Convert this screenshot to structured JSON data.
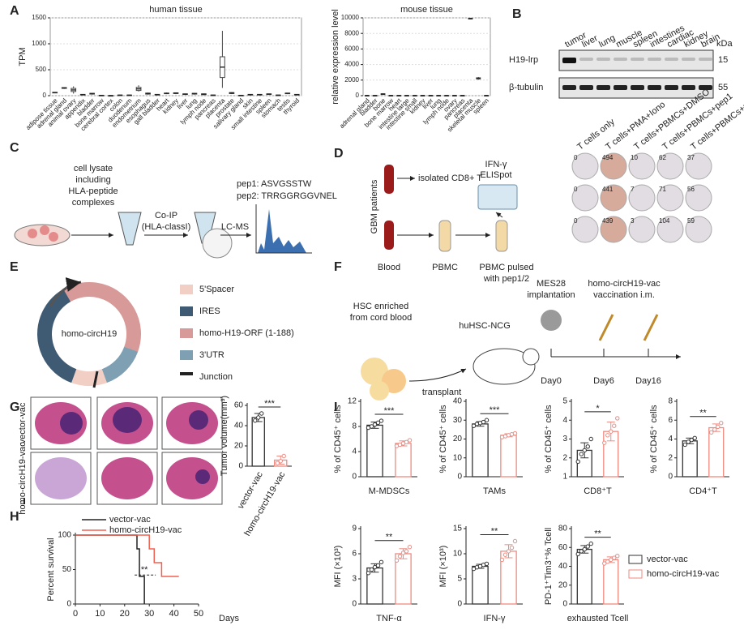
{
  "panel_labels": [
    "A",
    "B",
    "C",
    "D",
    "E",
    "F",
    "G",
    "H",
    "I"
  ],
  "blot": {
    "lanes": [
      "tumor",
      "liver",
      "lung",
      "muscle",
      "spleen",
      "intestines",
      "cardiac",
      "kidney",
      "brain"
    ],
    "unit": "kDa",
    "rows": [
      {
        "name": "H19-lrp",
        "marker": "15"
      },
      {
        "name": "β-tubulin",
        "marker": "55"
      }
    ]
  },
  "workflow_c": {
    "lysate": [
      "cell lysate",
      "including",
      "HLA-peptide",
      "complexes"
    ],
    "coip": [
      "Co-IP",
      "(HLA-classI)"
    ],
    "lcms": "LC-MS",
    "peptides": [
      "pep1: ASVGSSTW",
      "pep2: TRRGGRGGVNEL"
    ]
  },
  "workflow_d": {
    "patients": "GBM patients",
    "cd8": "isolated CD8+ T",
    "elispot": [
      "IFN-γ",
      "ELISpot"
    ],
    "blood": "Blood",
    "pbmc": "PBMC",
    "pulsed": [
      "PBMC pulsed",
      "with pep1/2"
    ],
    "conditions": [
      "T cells only",
      "T cells+PMA+Iono",
      "T cells+PBMCs+DMSO",
      "T cells+PBMCs+pep1",
      "T cells+PBMCs+pep2"
    ],
    "spots": [
      [
        0,
        494,
        10,
        62,
        37
      ],
      [
        0,
        441,
        7,
        71,
        56
      ],
      [
        0,
        439,
        3,
        104,
        59
      ]
    ]
  },
  "construct_e": {
    "name": "homo-circH19",
    "legend": [
      {
        "label": "5'Spacer",
        "color": "#f2cfc5"
      },
      {
        "label": "IRES",
        "color": "#3f5a73"
      },
      {
        "label": "homo-H19-ORF (1-188)",
        "color": "#d89a98"
      },
      {
        "label": "3'UTR",
        "color": "#7f9fb3"
      },
      {
        "label": "Junction",
        "color": "#222222"
      }
    ]
  },
  "model_f": {
    "source": [
      "HSC enriched",
      "from cord blood"
    ],
    "transplant": "transplant",
    "mouse": "huHSC-NCG",
    "implant": [
      "MES28",
      "implantation"
    ],
    "vaccine": [
      "homo-circH19-vac",
      "vaccination i.m."
    ],
    "days": [
      "Day0",
      "Day6",
      "Day16"
    ]
  },
  "panel_g": {
    "rows": [
      "vector-vac",
      "homo-circH19-vac"
    ]
  },
  "panel_i_legend": [
    {
      "name": "vector-vac",
      "color": "#333333"
    },
    {
      "name": "homo-circH19-vac",
      "color": "#f08a80"
    }
  ],
  "chart_data": [
    {
      "type": "box",
      "title": "human tissue",
      "ylabel": "TPM",
      "frame": true,
      "grid": true,
      "ylim": [
        0,
        1500
      ],
      "yticks": [
        0,
        500,
        1000,
        1500
      ],
      "categories": [
        "adipose tissue",
        "adrenal gland",
        "animal ovary",
        "appendix",
        "bladder",
        "bone marrow",
        "cerebral cortex",
        "colon",
        "duodenum",
        "endometrium",
        "esophagus",
        "gall bladder",
        "heart",
        "kidney",
        "liver",
        "lung",
        "lymph node",
        "pancreas",
        "placenta",
        "prostate",
        "salivary gland",
        "skin",
        "small intestine",
        "spleen",
        "stomach",
        "testis",
        "thyroid"
      ],
      "boxes": [
        [
          50,
          55,
          60,
          65,
          70
        ],
        [
          130,
          140,
          150,
          155,
          160
        ],
        [
          40,
          80,
          110,
          140,
          180
        ],
        [
          10,
          15,
          20,
          25,
          30
        ],
        [
          20,
          30,
          40,
          45,
          50
        ],
        [
          0,
          2,
          5,
          8,
          10
        ],
        [
          0,
          1,
          2,
          3,
          5
        ],
        [
          5,
          8,
          10,
          12,
          15
        ],
        [
          5,
          8,
          10,
          12,
          15
        ],
        [
          80,
          100,
          130,
          160,
          200
        ],
        [
          20,
          30,
          40,
          50,
          60
        ],
        [
          10,
          15,
          20,
          25,
          30
        ],
        [
          30,
          40,
          45,
          50,
          60
        ],
        [
          30,
          40,
          50,
          55,
          60
        ],
        [
          20,
          25,
          30,
          35,
          40
        ],
        [
          20,
          30,
          40,
          45,
          50
        ],
        [
          10,
          20,
          30,
          35,
          40
        ],
        [
          5,
          8,
          10,
          12,
          15
        ],
        [
          150,
          350,
          550,
          750,
          1250
        ],
        [
          30,
          40,
          50,
          60,
          70
        ],
        [
          0,
          2,
          5,
          8,
          10
        ],
        [
          10,
          15,
          20,
          25,
          30
        ],
        [
          10,
          15,
          20,
          25,
          30
        ],
        [
          20,
          25,
          30,
          35,
          40
        ],
        [
          5,
          8,
          10,
          12,
          15
        ],
        [
          30,
          40,
          45,
          50,
          55
        ],
        [
          10,
          15,
          20,
          25,
          30
        ]
      ]
    },
    {
      "type": "box",
      "title": "mouse tissue",
      "ylabel": "relative expression level",
      "frame": true,
      "grid": true,
      "ylim": [
        0,
        10000
      ],
      "yticks": [
        0,
        2000,
        4000,
        6000,
        8000,
        10000
      ],
      "categories": [
        "adrenal gland",
        "bladder",
        "bone",
        "bone marrow",
        "heart",
        "intestine large",
        "intestine small",
        "kidney",
        "liver",
        "lung",
        "lymph node",
        "ovary",
        "pancreas",
        "placenta",
        "skeletal muscle",
        "spleen"
      ],
      "boxes": [
        [
          0,
          10,
          20,
          30,
          40
        ],
        [
          0,
          10,
          20,
          30,
          40
        ],
        [
          100,
          150,
          200,
          250,
          300
        ],
        [
          0,
          10,
          20,
          30,
          40
        ],
        [
          0,
          10,
          20,
          30,
          40
        ],
        [
          0,
          10,
          20,
          30,
          40
        ],
        [
          0,
          10,
          20,
          30,
          40
        ],
        [
          0,
          10,
          20,
          30,
          40
        ],
        [
          0,
          10,
          20,
          30,
          40
        ],
        [
          0,
          10,
          20,
          30,
          40
        ],
        [
          0,
          10,
          20,
          30,
          40
        ],
        [
          0,
          10,
          20,
          30,
          40
        ],
        [
          0,
          10,
          20,
          30,
          40
        ],
        [
          9800,
          9850,
          9900,
          9950,
          10000
        ],
        [
          2050,
          2150,
          2200,
          2300,
          2400
        ],
        [
          0,
          10,
          20,
          30,
          40
        ]
      ]
    },
    {
      "type": "bar",
      "ylabel": "Tumor volume(mm³)",
      "categories": [
        "vector-vac",
        "homo-circH19-vac"
      ],
      "ylim": [
        0,
        60
      ],
      "yticks": [
        0,
        20,
        40,
        60
      ],
      "values": [
        48,
        6
      ],
      "errors": [
        4,
        4
      ],
      "points": [
        [
          45,
          48,
          52
        ],
        [
          3,
          5,
          10
        ]
      ],
      "colors": [
        "#333333",
        "#f08a80"
      ],
      "significance": "***"
    },
    {
      "type": "line",
      "ylabel": "Percent survival",
      "xlabel": "Days",
      "xlim": [
        0,
        50
      ],
      "xticks": [
        0,
        10,
        20,
        30,
        40,
        50
      ],
      "ylim": [
        0,
        100
      ],
      "yticks": [
        0,
        50,
        100
      ],
      "annotation": "**",
      "series": [
        {
          "name": "vector-vac",
          "color": "#222222",
          "x": [
            0,
            25,
            25,
            26,
            26,
            28,
            28
          ],
          "y": [
            100,
            100,
            80,
            80,
            40,
            40,
            0
          ]
        },
        {
          "name": "homo-circH19-vac",
          "color": "#f06050",
          "x": [
            0,
            30,
            30,
            32,
            32,
            35,
            35,
            42
          ],
          "y": [
            100,
            100,
            80,
            80,
            60,
            60,
            40,
            40
          ]
        }
      ]
    },
    {
      "type": "bar",
      "ylabel": "% of CD45⁺ cells",
      "xlabel": "M-MDSCs",
      "ylim": [
        0,
        12
      ],
      "yticks": [
        0,
        4,
        8,
        12
      ],
      "values": [
        8.2,
        5.3
      ],
      "errors": [
        0.5,
        0.4
      ],
      "points": [
        [
          7.8,
          8.0,
          8.3,
          8.6,
          8.9
        ],
        [
          4.9,
          5.1,
          5.3,
          5.5,
          5.8
        ]
      ],
      "colors": [
        "#333333",
        "#f08a80"
      ],
      "significance": "***"
    },
    {
      "type": "bar",
      "ylabel": "% of CD45⁺ cells",
      "xlabel": "TAMs",
      "ylim": [
        0,
        40
      ],
      "yticks": [
        0,
        10,
        20,
        30,
        40
      ],
      "values": [
        28,
        22
      ],
      "errors": [
        1.2,
        0.8
      ],
      "points": [
        [
          27,
          28,
          28.5,
          29,
          30
        ],
        [
          21,
          21.5,
          22,
          22.5,
          23
        ]
      ],
      "colors": [
        "#333333",
        "#f08a80"
      ],
      "significance": "***"
    },
    {
      "type": "bar",
      "ylabel": "% of CD45⁺ cells",
      "xlabel": "CD8⁺T",
      "ylim": [
        1,
        5
      ],
      "yticks": [
        1,
        2,
        3,
        4,
        5
      ],
      "values": [
        2.4,
        3.4
      ],
      "errors": [
        0.4,
        0.5
      ],
      "points": [
        [
          1.8,
          2.2,
          2.4,
          2.6,
          3.0
        ],
        [
          2.8,
          3.2,
          3.4,
          3.7,
          4.1
        ]
      ],
      "colors": [
        "#333333",
        "#f08a80"
      ],
      "significance": "*"
    },
    {
      "type": "bar",
      "ylabel": "% of CD45⁺ cells",
      "xlabel": "CD4⁺T",
      "ylim": [
        0,
        8
      ],
      "yticks": [
        0,
        2,
        4,
        6,
        8
      ],
      "values": [
        3.8,
        5.2
      ],
      "errors": [
        0.3,
        0.4
      ],
      "points": [
        [
          3.4,
          3.7,
          3.9,
          4.1
        ],
        [
          4.7,
          5.0,
          5.3,
          5.7
        ]
      ],
      "colors": [
        "#333333",
        "#f08a80"
      ],
      "significance": "**"
    },
    {
      "type": "bar",
      "ylabel": "MFI (×10³)",
      "xlabel": "TNF-α",
      "ylim": [
        0,
        9
      ],
      "yticks": [
        0,
        3,
        6,
        9
      ],
      "values": [
        4.3,
        6.0
      ],
      "errors": [
        0.5,
        0.6
      ],
      "points": [
        [
          3.7,
          4.1,
          4.4,
          4.6,
          5.0
        ],
        [
          5.2,
          5.7,
          6.1,
          6.3,
          6.8
        ]
      ],
      "colors": [
        "#333333",
        "#f08a80"
      ],
      "significance": "**"
    },
    {
      "type": "bar",
      "ylabel": "MFI (×10³)",
      "xlabel": "IFN-γ",
      "ylim": [
        0,
        15
      ],
      "yticks": [
        0,
        5,
        10,
        15
      ],
      "values": [
        7.5,
        10.5
      ],
      "errors": [
        0.4,
        1.3
      ],
      "points": [
        [
          7.0,
          7.3,
          7.5,
          7.8,
          8.0
        ],
        [
          8.8,
          9.8,
          10.5,
          11.2,
          12.5
        ]
      ],
      "colors": [
        "#333333",
        "#f08a80"
      ],
      "significance": "**"
    },
    {
      "type": "bar",
      "ylabel": "PD-1⁺Tim3⁺% Tcell",
      "xlabel": "exhausted Tcell",
      "ylim": [
        0,
        80
      ],
      "yticks": [
        0,
        20,
        40,
        60,
        80
      ],
      "values": [
        58,
        47
      ],
      "errors": [
        4,
        3
      ],
      "points": [
        [
          53,
          56,
          58,
          61,
          64
        ],
        [
          43,
          45,
          47,
          49,
          51
        ]
      ],
      "colors": [
        "#333333",
        "#f08a80"
      ],
      "significance": "**"
    }
  ]
}
